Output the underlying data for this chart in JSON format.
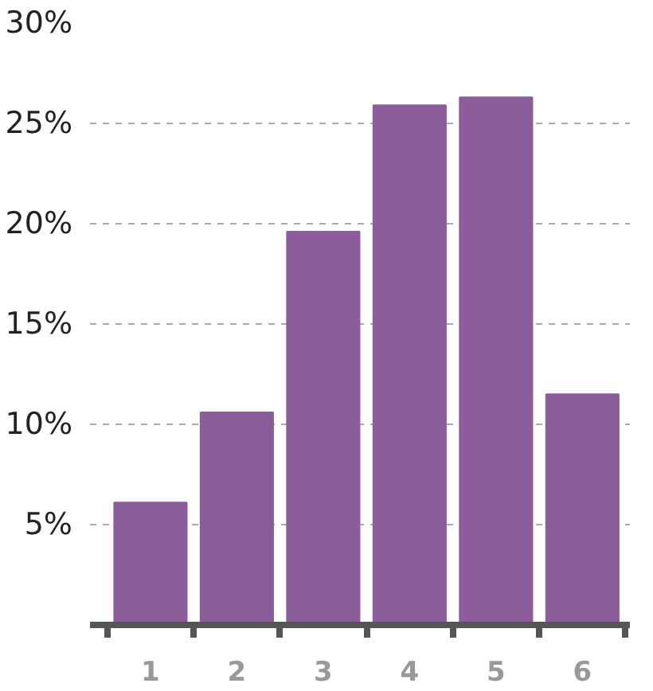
{
  "chart_data": {
    "type": "bar",
    "categories": [
      "1",
      "2",
      "3",
      "4",
      "5",
      "6"
    ],
    "values": [
      6.1,
      10.6,
      19.6,
      25.9,
      26.3,
      11.5
    ],
    "color": "#8b5e9b",
    "ylim": [
      0,
      30
    ],
    "yticks": [
      {
        "value": 5,
        "label": "5%"
      },
      {
        "value": 10,
        "label": "10%"
      },
      {
        "value": 15,
        "label": "15%"
      },
      {
        "value": 20,
        "label": "20%"
      },
      {
        "value": 25,
        "label": "25%"
      },
      {
        "value": 30,
        "label": "30%"
      }
    ],
    "grid": "y"
  }
}
